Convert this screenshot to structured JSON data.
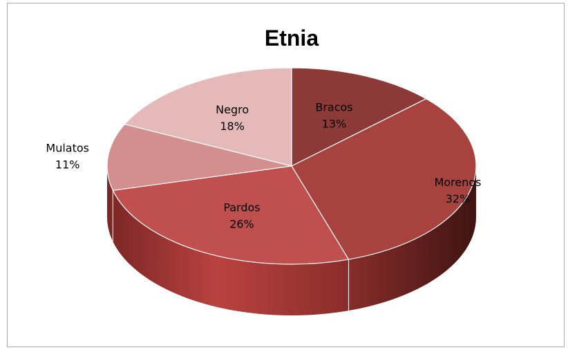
{
  "chart_data": {
    "type": "pie",
    "style": "3d",
    "title": "Etnia",
    "categories": [
      "Bracos",
      "Morenos",
      "Pardos",
      "Mulatos",
      "Negro"
    ],
    "values": [
      13,
      32,
      26,
      11,
      18
    ],
    "labels": [
      "13%",
      "32%",
      "26%",
      "11%",
      "18%"
    ],
    "colors": [
      "#8c3a37",
      "#a8423f",
      "#c0504d",
      "#d38f8d",
      "#e4b9b8"
    ],
    "legend": "none"
  }
}
